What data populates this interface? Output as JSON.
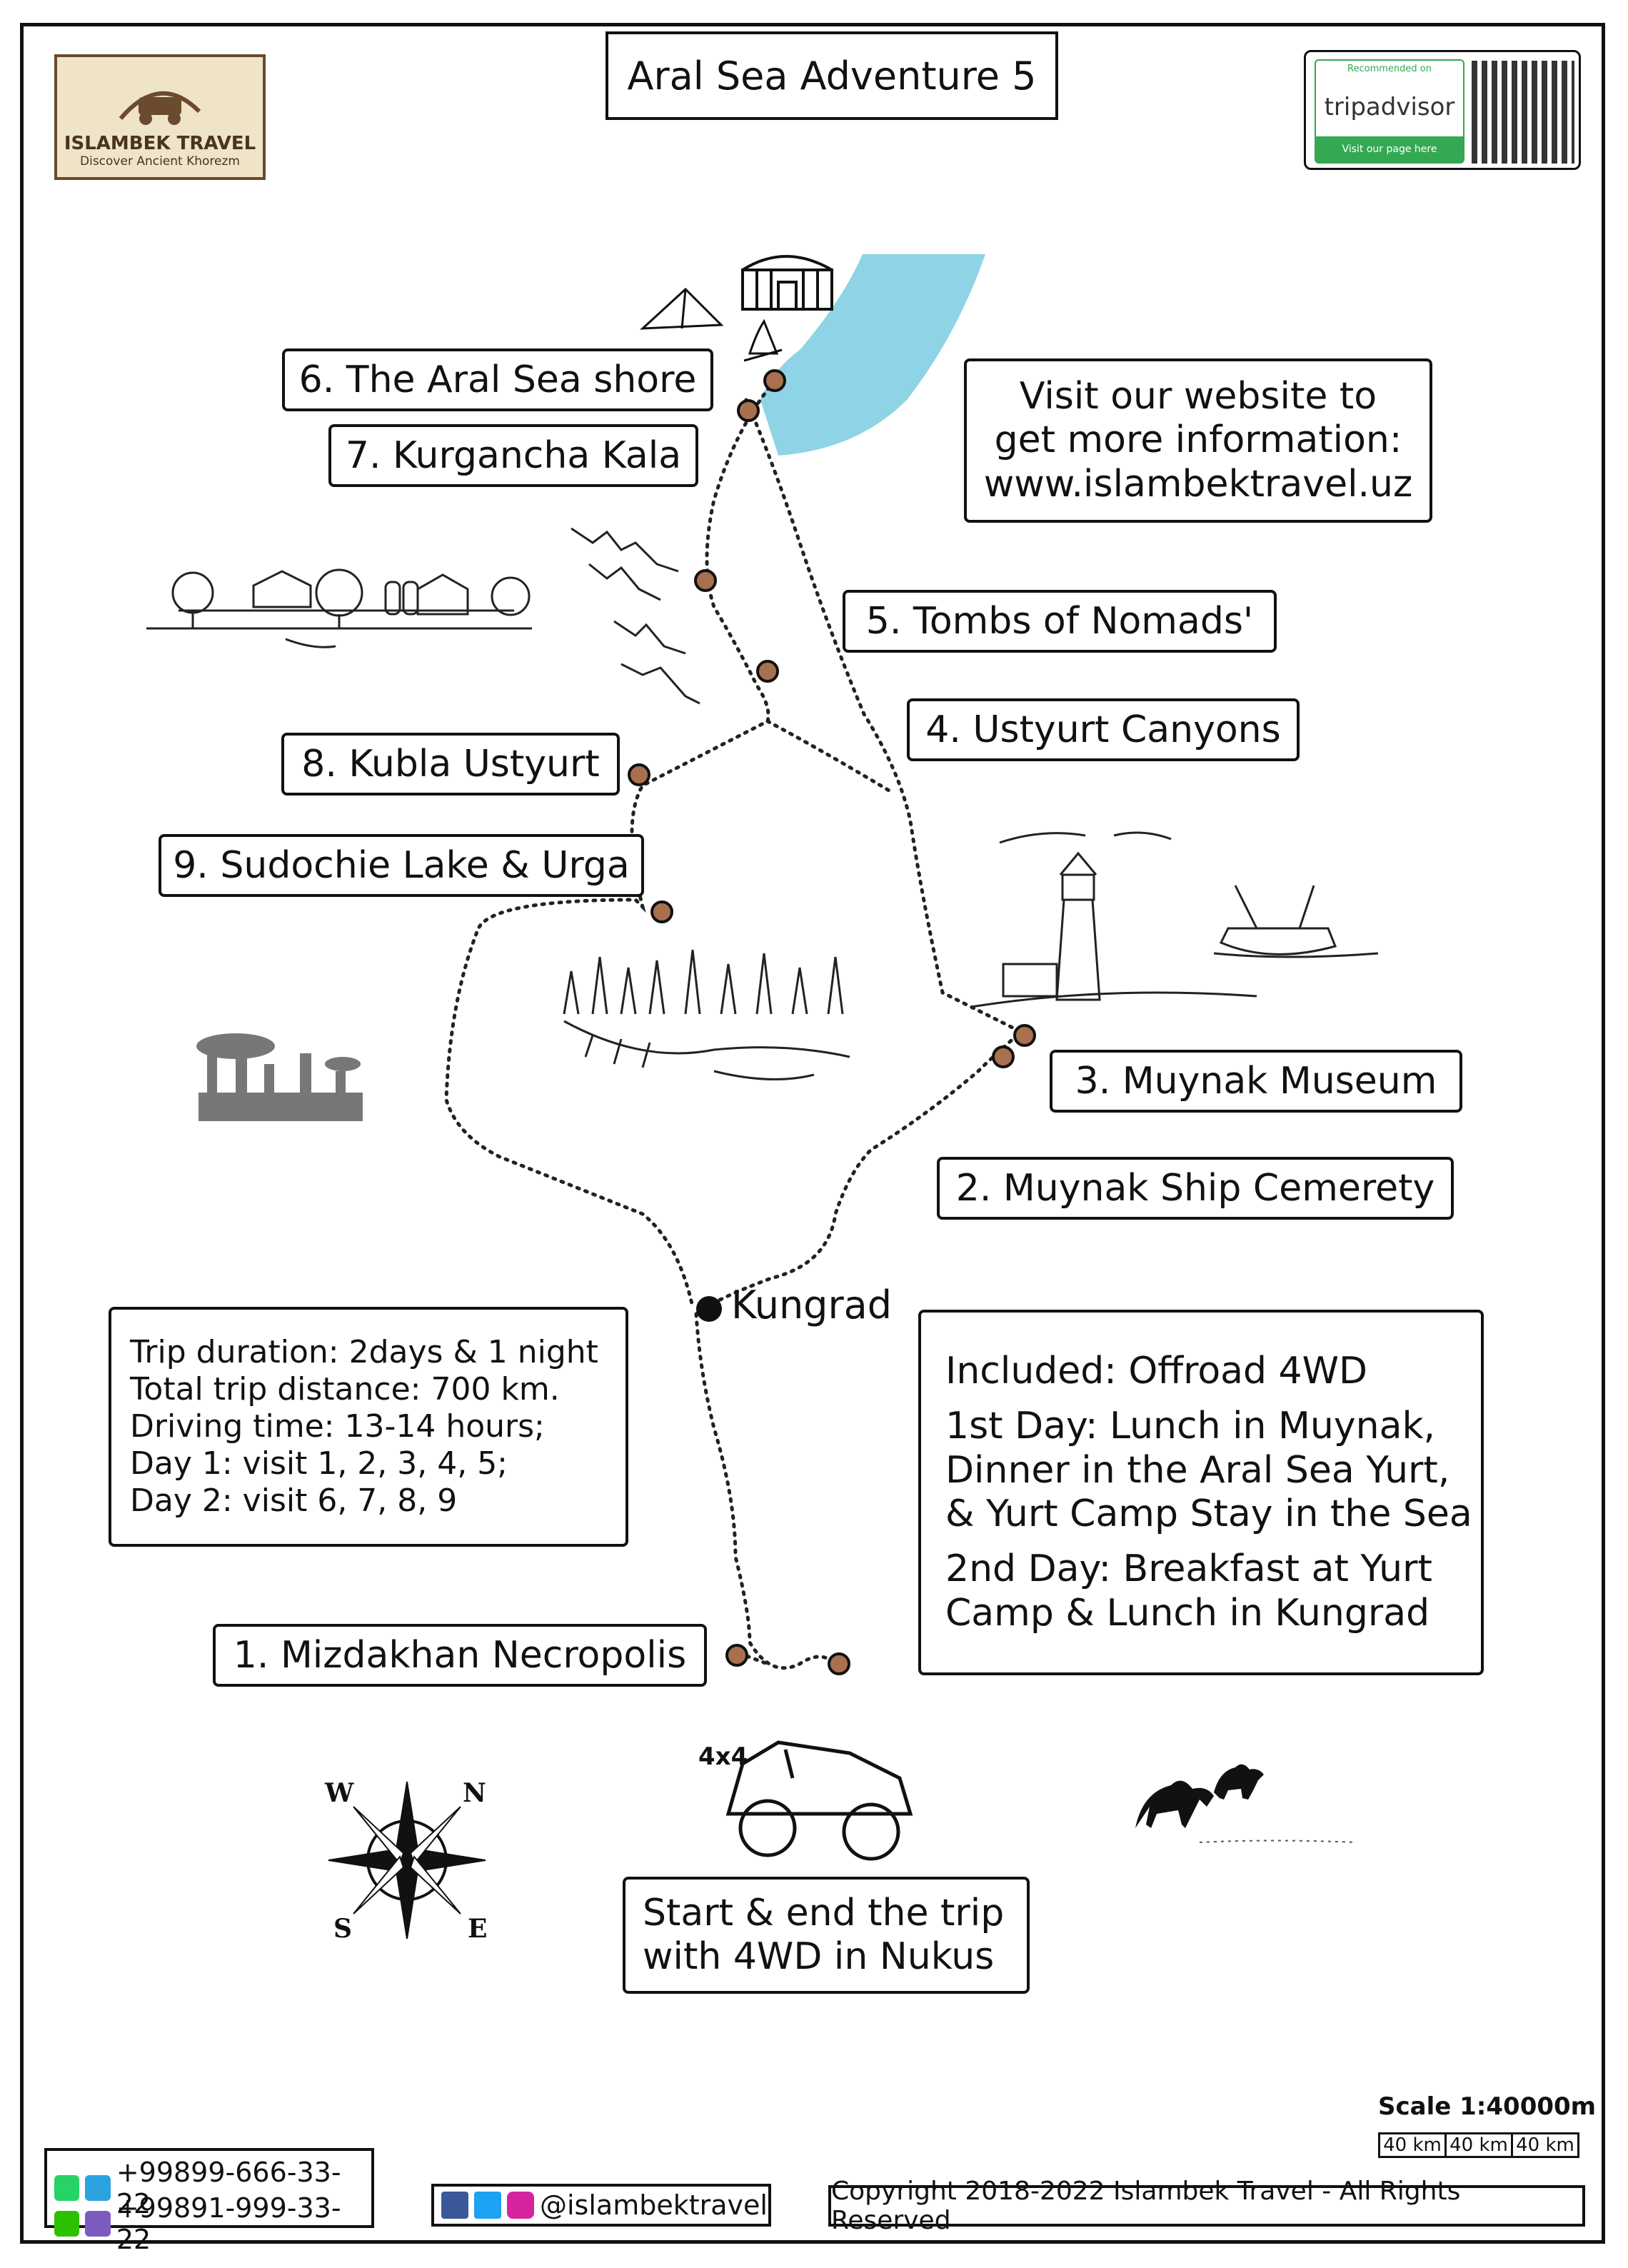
{
  "title": "Aral Sea Adventure 5",
  "logo": {
    "name": "ISLAMBEK TRAVEL",
    "tagline": "Discover Ancient Khorezm"
  },
  "tripadvisor": {
    "recommended": "Recommended on",
    "brand": "tripadvisor",
    "cta": "Visit our page here"
  },
  "website_box": {
    "line1": "Visit our website to",
    "line2": "get more information:",
    "line3": "www.islambektravel.uz"
  },
  "places": {
    "p1": "1. Mizdakhan Necropolis",
    "p2": "2. Muynak Ship Cemerety",
    "p3": "3. Muynak Museum",
    "p4": "4. Ustyurt Canyons",
    "p5": "5. Tombs of Nomads'",
    "p6": "6. The Aral Sea shore",
    "p7": "7. Kurgancha Kala",
    "p8": "8. Kubla Ustyurt",
    "p9": "9. Sudochie Lake & Urga",
    "kungrad": "Kungrad"
  },
  "trip_info": {
    "l1": "Trip duration: 2days & 1 night",
    "l2": "Total trip distance: 700 km.",
    "l3": "Driving time: 13-14 hours;",
    "l4": "Day 1: visit 1, 2, 3, 4, 5;",
    "l5": "Day 2: visit 6, 7, 8, 9"
  },
  "included": {
    "l1": "Included: Offroad 4WD",
    "l2": "1st Day: Lunch in Muynak,",
    "l3": "Dinner in the Aral Sea Yurt,",
    "l4": "& Yurt Camp Stay in the Sea",
    "l5": "2nd Day: Breakfast at Yurt",
    "l6": "Camp & Lunch in Kungrad"
  },
  "start_box": {
    "l1": "Start & end the trip",
    "l2": "with 4WD in Nukus"
  },
  "car_label": "4x4",
  "compass": {
    "w": "W",
    "n": "N",
    "s": "S",
    "e": "E"
  },
  "scale": {
    "label": "Scale 1:40000m",
    "seg": [
      "40 km",
      "40 km",
      "40 km"
    ]
  },
  "contacts": {
    "phone1": "+99899-666-33-22",
    "phone2": "+99891-999-33-22"
  },
  "social": "@islambektravel",
  "copyright": "Copyright 2018-2022 Islambek Travel - All Rights Reserved",
  "colors": {
    "sea": "#8fd3e6",
    "marker": "#a9704f",
    "tripadvisor_green": "#34a853"
  }
}
